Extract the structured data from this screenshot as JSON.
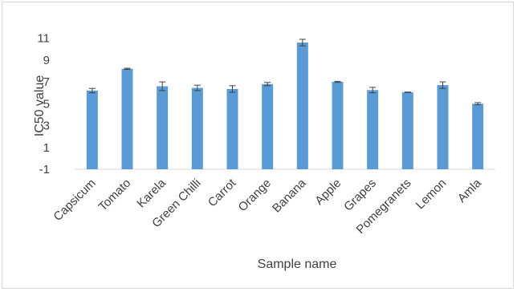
{
  "chart_data": {
    "type": "bar",
    "title": "",
    "xlabel": "Sample name",
    "ylabel": "IC50 value",
    "categories": [
      "Capsicum",
      "Tomato",
      "Karela",
      "Green Chilli",
      "Carrot",
      "Orange",
      "Banana",
      "Apple",
      "Grapes",
      "Pomegranets",
      "Lemon",
      "Amla"
    ],
    "values": [
      6.2,
      8.2,
      6.6,
      6.45,
      6.35,
      6.8,
      10.6,
      7.0,
      6.25,
      6.05,
      6.7,
      5.0
    ],
    "errors": [
      0.2,
      0.05,
      0.4,
      0.25,
      0.3,
      0.15,
      0.3,
      0.05,
      0.25,
      0.02,
      0.3,
      0.1
    ],
    "yticks": [
      -1,
      1,
      3,
      5,
      7,
      9,
      11
    ],
    "ylim": [
      -1,
      12
    ],
    "baseline": -1,
    "grid": false,
    "legend": "none",
    "colors": {
      "bar": "#5B9BD5",
      "error": "#404040",
      "axis": "#d9d9d9",
      "text": "#404040"
    }
  }
}
